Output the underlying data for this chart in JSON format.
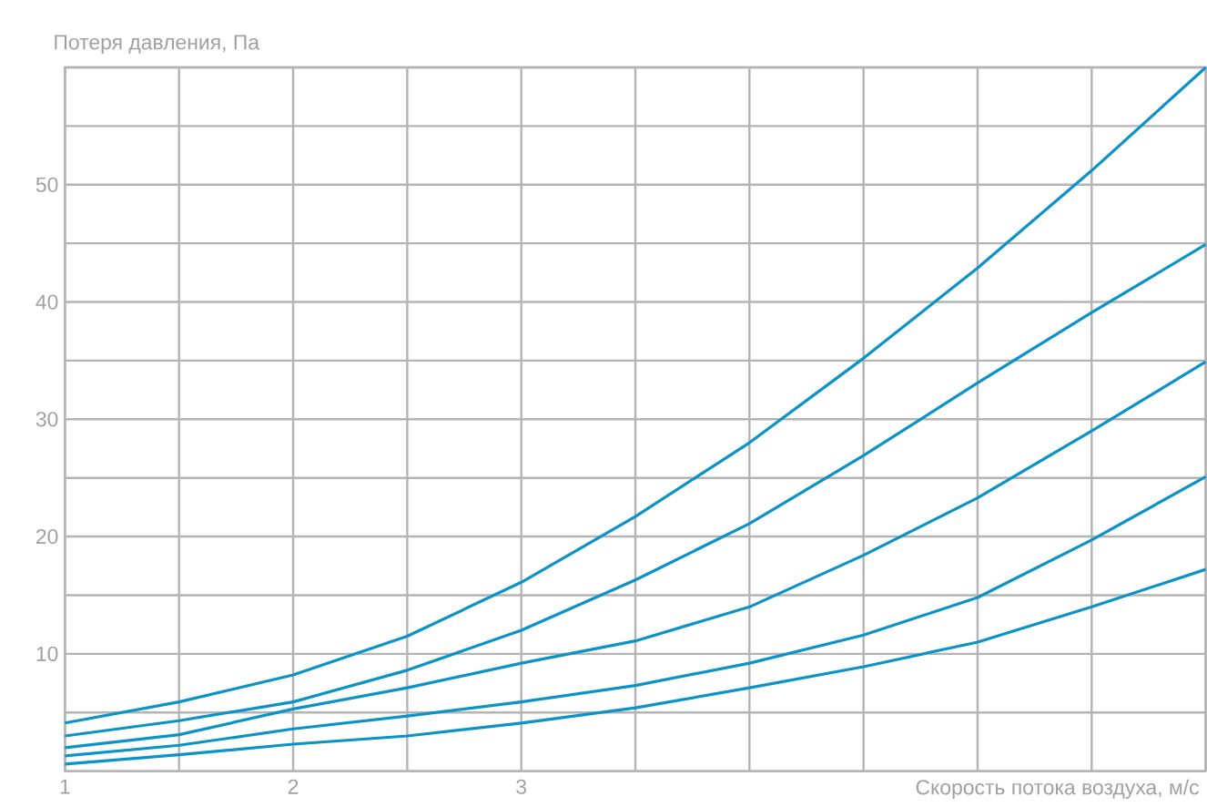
{
  "chart_data": {
    "type": "line",
    "xlabel": "Скорость потока воздуха, м/с",
    "ylabel": "Потеря давления, Па",
    "x": [
      1,
      1.5,
      2,
      2.5,
      3,
      3.5,
      4,
      4.5,
      5,
      5.5,
      6
    ],
    "xlim": [
      1,
      6
    ],
    "ylim": [
      0,
      60
    ],
    "xticks": [
      1,
      {
        "value": 1.5,
        "label": null
      },
      2,
      {
        "value": 2.5,
        "label": null
      },
      3,
      {
        "value": 3.5,
        "label": null
      },
      {
        "value": 4,
        "label": null
      },
      {
        "value": 4.5,
        "label": null
      },
      {
        "value": 5,
        "label": null
      },
      {
        "value": 5.5,
        "label": null
      },
      {
        "value": 6,
        "label": null
      }
    ],
    "yticks": [
      {
        "value": 0,
        "label": null
      },
      {
        "value": 5,
        "label": null
      },
      10,
      {
        "value": 15,
        "label": null
      },
      20,
      {
        "value": 25,
        "label": null
      },
      30,
      {
        "value": 35,
        "label": null
      },
      40,
      {
        "value": 45,
        "label": null
      },
      50,
      {
        "value": 55,
        "label": null
      },
      {
        "value": 60,
        "label": null
      }
    ],
    "grid": true,
    "marker": "none",
    "line_style": "solid",
    "series": [
      {
        "color": "#0b93c8",
        "values": [
          4.1,
          5.9,
          8.2,
          11.5,
          16.1,
          21.7,
          28.0,
          35.2,
          42.9,
          51.2,
          60.0
        ]
      },
      {
        "color": "#0b93c8",
        "values": [
          3.0,
          4.3,
          5.9,
          8.6,
          12.0,
          16.3,
          21.1,
          26.9,
          33.1,
          39.1,
          44.9
        ]
      },
      {
        "color": "#0b93c8",
        "values": [
          2.0,
          3.1,
          5.3,
          7.1,
          9.2,
          11.1,
          14.0,
          18.4,
          23.3,
          29.0,
          34.9
        ]
      },
      {
        "color": "#0b93c8",
        "values": [
          1.3,
          2.2,
          3.6,
          4.7,
          5.9,
          7.3,
          9.2,
          11.6,
          14.8,
          19.7,
          25.1
        ]
      },
      {
        "color": "#0b93c8",
        "values": [
          0.6,
          1.4,
          2.3,
          3.0,
          4.1,
          5.4,
          7.1,
          8.9,
          11.0,
          14.0,
          17.2
        ]
      }
    ]
  }
}
